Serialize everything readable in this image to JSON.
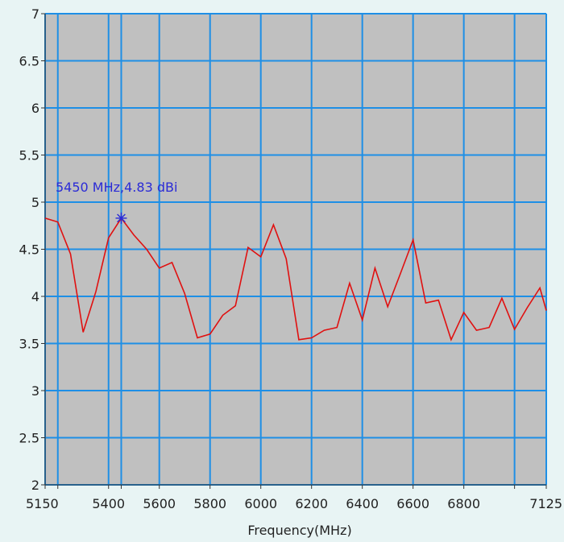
{
  "colors": {
    "page_background": "#e8f4f4",
    "plot_background": "#c0c0c0",
    "grid": "#1e8fe6",
    "series_line": "#e01010",
    "annotation": "#2b2bd6"
  },
  "chart_data": {
    "type": "line",
    "title": "",
    "xlabel": "Frequency(MHz)",
    "ylabel": "",
    "xlim": [
      5150,
      7125
    ],
    "ylim": [
      2,
      7
    ],
    "grid": true,
    "x_ticks": [
      5150,
      5200,
      5400,
      5450,
      5600,
      5800,
      6000,
      6200,
      6400,
      6600,
      6800,
      7000,
      7125
    ],
    "x_tick_labels": [
      {
        "value": 5150,
        "label": "5150"
      },
      {
        "value": 5400,
        "label": "5400"
      },
      {
        "value": 5600,
        "label": "5600"
      },
      {
        "value": 5800,
        "label": "5800"
      },
      {
        "value": 6000,
        "label": "6000"
      },
      {
        "value": 6200,
        "label": "6200"
      },
      {
        "value": 6400,
        "label": "6400"
      },
      {
        "value": 6600,
        "label": "6600"
      },
      {
        "value": 6800,
        "label": "6800"
      },
      {
        "value": 7125,
        "label": "7125"
      }
    ],
    "y_ticks": [
      2,
      2.5,
      3,
      3.5,
      4,
      4.5,
      5,
      5.5,
      6,
      6.5,
      7
    ],
    "y_tick_labels": [
      "2",
      "2.5",
      "3",
      "3.5",
      "4",
      "4.5",
      "5",
      "5.5",
      "6",
      "6.5",
      "7"
    ],
    "series": [
      {
        "x": [
          5150,
          5200,
          5250,
          5300,
          5350,
          5400,
          5450,
          5500,
          5550,
          5600,
          5650,
          5700,
          5750,
          5800,
          5850,
          5900,
          5950,
          6000,
          6050,
          6100,
          6150,
          6200,
          6250,
          6300,
          6350,
          6400,
          6450,
          6500,
          6550,
          6600,
          6650,
          6700,
          6750,
          6800,
          6850,
          6900,
          6950,
          7000,
          7050,
          7100,
          7125
        ],
        "y": [
          4.83,
          4.79,
          4.45,
          3.62,
          4.05,
          4.62,
          4.83,
          4.65,
          4.5,
          4.3,
          4.36,
          4.03,
          3.56,
          3.6,
          3.8,
          3.9,
          4.52,
          4.42,
          4.76,
          4.4,
          3.54,
          3.56,
          3.64,
          3.67,
          4.14,
          3.75,
          4.3,
          3.89,
          4.24,
          4.6,
          3.93,
          3.96,
          3.54,
          3.83,
          3.64,
          3.67,
          3.98,
          3.65,
          3.88,
          4.09,
          3.85
        ]
      }
    ],
    "marker": {
      "x": 5450,
      "y": 4.83,
      "symbol": "asterisk"
    },
    "annotations": [
      {
        "text": "5450 MHz,4.83 dBi",
        "x": 5450,
        "y": 4.83
      }
    ]
  }
}
